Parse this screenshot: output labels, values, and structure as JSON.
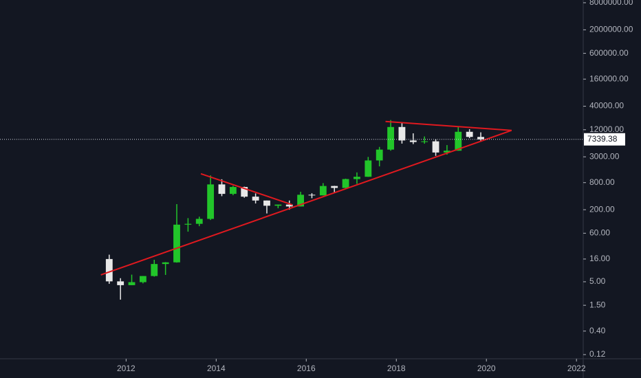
{
  "chart_data": {
    "type": "candlestick",
    "log_scale": true,
    "up_color": "#22c52a",
    "down_color": "#e8e8e8",
    "x": [
      2011.625,
      2011.875,
      2012.125,
      2012.375,
      2012.625,
      2012.875,
      2013.125,
      2013.375,
      2013.625,
      2013.875,
      2014.125,
      2014.375,
      2014.625,
      2014.875,
      2015.125,
      2015.375,
      2015.625,
      2015.875,
      2016.125,
      2016.375,
      2016.625,
      2016.875,
      2017.125,
      2017.375,
      2017.625,
      2017.875,
      2018.125,
      2018.375,
      2018.625,
      2018.875,
      2019.125,
      2019.375,
      2019.625,
      2019.875
    ],
    "open": [
      16,
      5.1,
      4.2,
      4.9,
      6.7,
      12.4,
      13.5,
      93,
      97,
      125,
      730,
      450,
      640,
      390,
      320,
      245,
      260,
      236,
      430,
      416,
      673,
      610,
      960,
      1080,
      2490,
      4340,
      13800,
      6930,
      6390,
      6630,
      3740,
      4100,
      10800,
      8300
    ],
    "high": [
      20,
      6,
      7.2,
      6.7,
      15.4,
      13.7,
      266,
      130,
      140,
      1160,
      950,
      680,
      650,
      460,
      320,
      260,
      320,
      500,
      465,
      780,
      680,
      980,
      1350,
      2980,
      4980,
      19700,
      17200,
      9980,
      8500,
      7400,
      5470,
      13800,
      12300,
      10500
    ],
    "low": [
      4.5,
      2,
      4.2,
      4.6,
      6.5,
      7.1,
      13.3,
      65,
      86,
      118,
      400,
      420,
      370,
      275,
      165,
      215,
      200,
      236,
      360,
      415,
      470,
      600,
      750,
      1075,
      1840,
      4100,
      5900,
      5760,
      5880,
      3150,
      3350,
      4100,
      7800,
      6500
    ],
    "close": [
      5.1,
      4.2,
      4.9,
      6.7,
      12.4,
      13.5,
      93,
      97,
      125,
      730,
      450,
      640,
      390,
      320,
      245,
      260,
      236,
      430,
      416,
      673,
      610,
      960,
      1080,
      2490,
      4340,
      13800,
      6930,
      6390,
      6630,
      3740,
      4100,
      10800,
      8300,
      7339.38
    ],
    "last_price": 7339.38,
    "xlim": [
      2009.2,
      2022.15
    ],
    "xticks": [
      2012,
      2014,
      2016,
      2018,
      2020,
      2022
    ],
    "ylim": [
      0.097,
      9200000
    ],
    "yticks": [
      {
        "value": 0.12,
        "label": "0.12"
      },
      {
        "value": 0.4,
        "label": "0.40"
      },
      {
        "value": 1.5,
        "label": "1.50"
      },
      {
        "value": 5,
        "label": "5.00"
      },
      {
        "value": 16,
        "label": "16.00"
      },
      {
        "value": 60,
        "label": "60.00"
      },
      {
        "value": 200,
        "label": "200.00"
      },
      {
        "value": 800,
        "label": "800.00"
      },
      {
        "value": 3000,
        "label": "3000.00"
      },
      {
        "value": 12000,
        "label": "12000.00"
      },
      {
        "value": 40000,
        "label": "40000.00"
      },
      {
        "value": 160000,
        "label": "160000.00"
      },
      {
        "value": 600000,
        "label": "600000.00"
      },
      {
        "value": 2000000,
        "label": "2000000.00"
      },
      {
        "value": 8000000,
        "label": "8000000.00"
      }
    ],
    "trendlines": [
      {
        "color": "#e0191f",
        "points": [
          [
            2011.44,
            7.1
          ],
          [
            2020.56,
            11600
          ]
        ]
      },
      {
        "color": "#e0191f",
        "points": [
          [
            2013.66,
            1260
          ],
          [
            2015.69,
            258
          ]
        ]
      },
      {
        "color": "#e0191f",
        "points": [
          [
            2017.76,
            18300
          ],
          [
            2020.56,
            11600
          ]
        ]
      }
    ]
  }
}
